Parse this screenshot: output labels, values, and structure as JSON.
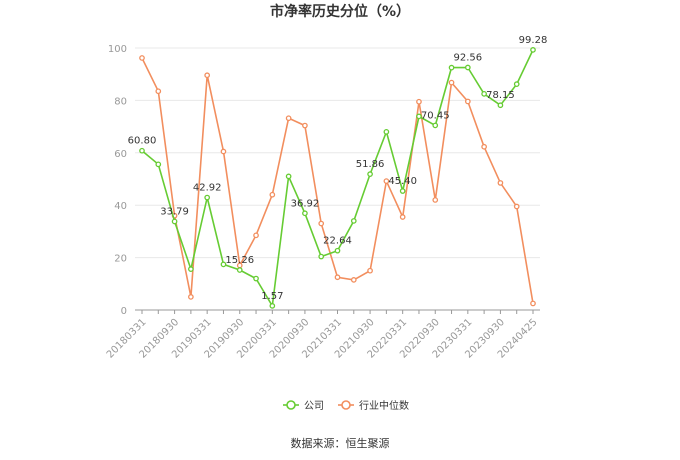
{
  "chart_data": {
    "type": "line",
    "title": "市净率历史分位（%）",
    "ylim": [
      0,
      100
    ],
    "yticks": [
      0,
      20,
      40,
      60,
      80,
      100
    ],
    "x": [
      "20180331",
      "20180630",
      "20180930",
      "20181231",
      "20190331",
      "20190630",
      "20190930",
      "20191231",
      "20200331",
      "20200630",
      "20200930",
      "20201231",
      "20210331",
      "20210630",
      "20210930",
      "20211231",
      "20220331",
      "20220630",
      "20220930",
      "20221231",
      "20230331",
      "20230630",
      "20230930",
      "20231231",
      "20240425"
    ],
    "x_tick_labels": [
      "20180331",
      "20180930",
      "20190331",
      "20190930",
      "20200331",
      "20200930",
      "20210331",
      "20210930",
      "20220331",
      "20220930",
      "20230331",
      "20230930",
      "20240425"
    ],
    "x_tick_indices": [
      0,
      2,
      4,
      6,
      8,
      10,
      12,
      14,
      16,
      18,
      20,
      22,
      24
    ],
    "series": [
      {
        "name": "公司",
        "color": "#66cc33",
        "values": [
          60.8,
          55.6,
          33.79,
          15.6,
          42.92,
          17.4,
          15.26,
          12.0,
          1.57,
          51.0,
          36.92,
          20.4,
          22.64,
          34.0,
          51.86,
          68.0,
          45.4,
          73.9,
          70.45,
          92.5,
          92.56,
          82.5,
          78.15,
          86.2,
          99.28
        ],
        "labels": {
          "0": "60.80",
          "2": "33.79",
          "4": "42.92",
          "6": "15.26",
          "8": "1.57",
          "10": "36.92",
          "12": "22.64",
          "14": "51.86",
          "16": "45.40",
          "18": "70.45",
          "20": "92.56",
          "22": "78.15",
          "24": "99.28"
        }
      },
      {
        "name": "行业中位数",
        "color": "#f28e5e",
        "values": [
          96.2,
          83.5,
          36.0,
          5.0,
          89.6,
          60.5,
          17.0,
          28.5,
          44.0,
          73.2,
          70.4,
          33.0,
          12.5,
          11.5,
          15.0,
          49.2,
          35.5,
          79.5,
          42.0,
          86.8,
          79.6,
          62.3,
          48.5,
          39.5,
          2.5
        ]
      }
    ],
    "source": "数据来源：恒生聚源"
  }
}
